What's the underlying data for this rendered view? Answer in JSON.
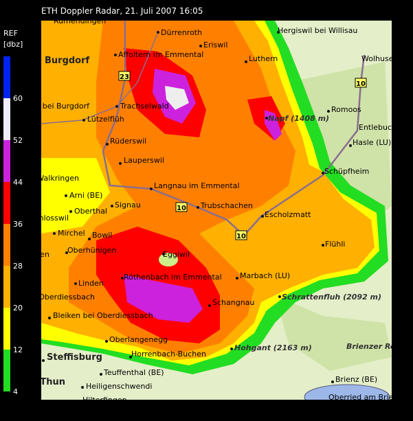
{
  "title": "ETH Doppler Radar, 21. Juli 2007 16:05",
  "legend": {
    "title": "REF",
    "unit": "[dbz]",
    "ticks": [
      60,
      52,
      44,
      36,
      28,
      20,
      12,
      4
    ]
  },
  "towns": [
    "Burgdorf",
    "Steffisburg",
    "Thun"
  ],
  "peaks": [
    "Napf (1408 m)",
    "Schrattenfluh (2092 m)",
    "Hohgant (2163 m)",
    "Brienzer Rothorn"
  ],
  "roads": [
    "23",
    "10",
    "10",
    "10"
  ],
  "places": [
    "Rumendingen",
    "Dürrenroth",
    "Hergiswil bei Willisau",
    "Affoltern im Emmental",
    "Eriswil",
    "Luthern",
    "Wolhusen",
    "Hasle bei Burgdorf",
    "Trachselwald",
    "Romoos",
    "Lützelflüh",
    "Entlebuch",
    "Rüderswil",
    "Hasle (LU)",
    "Lauperswil",
    "Schüpfheim",
    "Walkringen",
    "Langnau im Emmental",
    "Arni (BE)",
    "Trubschachen",
    "Signau",
    "Oberthal",
    "Escholzmatt",
    "Schlosswil",
    "Mirchel",
    "Bowil",
    "Flühli",
    "Konolfingen",
    "Oberhünigen",
    "Eggiwil",
    "Linden",
    "Röthenbach im Emmental",
    "Marbach (LU)",
    "Oberdiessbach",
    "Schangnau",
    "Bleiken bei Oberdiessbach",
    "Oberlangenegg",
    "Horrenbach-Buchen",
    "Teuffenthal (BE)",
    "Heiligenschwendi",
    "Brienz (BE)",
    "Oberried am Brienzersee",
    "Hilterfingen"
  ]
}
